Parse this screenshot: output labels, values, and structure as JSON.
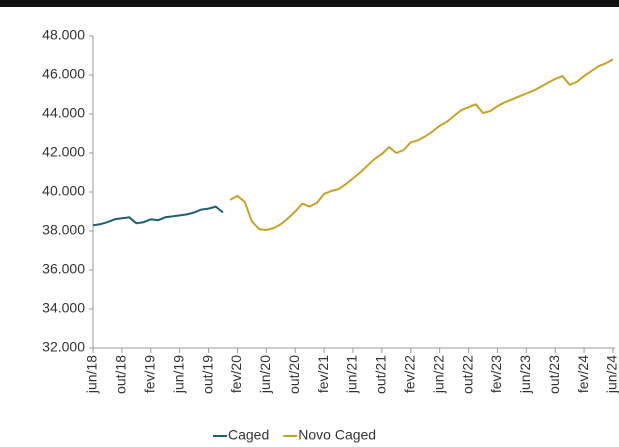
{
  "chart_data": {
    "type": "line",
    "categories": [
      "jun/18",
      null,
      null,
      null,
      "out/18",
      null,
      null,
      null,
      "fev/19",
      null,
      null,
      null,
      "jun/19",
      null,
      null,
      null,
      "out/19",
      null,
      null,
      null,
      "fev/20",
      null,
      null,
      null,
      "jun/20",
      null,
      null,
      null,
      "out/20",
      null,
      null,
      null,
      "fev/21",
      null,
      null,
      null,
      "jun/21",
      null,
      null,
      null,
      "out/21",
      null,
      null,
      null,
      "fev/22",
      null,
      null,
      null,
      "jun/22",
      null,
      null,
      null,
      "out/22",
      null,
      null,
      null,
      "fev/23",
      null,
      null,
      null,
      "jun/23",
      null,
      null,
      null,
      "out/23",
      null,
      null,
      null,
      "fev/24",
      null,
      null,
      null,
      "jun/24"
    ],
    "series": [
      {
        "name": "Caged",
        "color": "#1f5f75",
        "values": [
          38300,
          38350,
          38450,
          38600,
          38650,
          38700,
          38400,
          38450,
          38600,
          38550,
          38700,
          38750,
          38800,
          38850,
          38950,
          39100,
          39150,
          39250,
          38950,
          null,
          null,
          null,
          null,
          null,
          null,
          null,
          null,
          null,
          null,
          null,
          null,
          null,
          null,
          null,
          null,
          null,
          null,
          null,
          null,
          null,
          null,
          null,
          null,
          null,
          null,
          null,
          null,
          null,
          null,
          null,
          null,
          null,
          null,
          null,
          null,
          null,
          null,
          null,
          null,
          null,
          null,
          null,
          null,
          null,
          null,
          null,
          null,
          null,
          null,
          null,
          null,
          null,
          null
        ]
      },
      {
        "name": "Novo Caged",
        "color": "#c9a228",
        "values": [
          null,
          null,
          null,
          null,
          null,
          null,
          null,
          null,
          null,
          null,
          null,
          null,
          null,
          null,
          null,
          null,
          null,
          null,
          null,
          39600,
          39800,
          39500,
          38500,
          38100,
          38050,
          38150,
          38350,
          38650,
          39000,
          39400,
          39250,
          39450,
          39900,
          40050,
          40150,
          40400,
          40700,
          41000,
          41350,
          41700,
          41950,
          42300,
          42000,
          42150,
          42550,
          42650,
          42850,
          43100,
          43400,
          43600,
          43900,
          44200,
          44350,
          44500,
          44050,
          44150,
          44400,
          44600,
          44750,
          44900,
          45050,
          45200,
          45400,
          45600,
          45800,
          45950,
          45500,
          45650,
          45950,
          46200,
          46450,
          46600,
          46800
        ]
      }
    ],
    "ylim": [
      32000,
      48000
    ],
    "yticks": [
      {
        "value": 32000,
        "label": "32.000"
      },
      {
        "value": 34000,
        "label": "34.000"
      },
      {
        "value": 36000,
        "label": "36.000"
      },
      {
        "value": 38000,
        "label": "38.000"
      },
      {
        "value": 40000,
        "label": "40.000"
      },
      {
        "value": 42000,
        "label": "42.000"
      },
      {
        "value": 44000,
        "label": "44.000"
      },
      {
        "value": 46000,
        "label": "46.000"
      },
      {
        "value": 48000,
        "label": "48.000"
      }
    ],
    "grid": false,
    "legend": "bottom"
  }
}
